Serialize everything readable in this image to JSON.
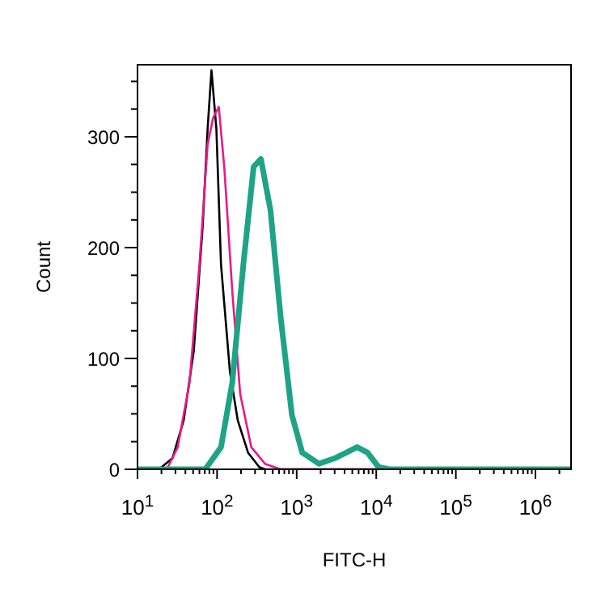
{
  "chart_data": {
    "type": "line",
    "xlabel": "FITC-H",
    "ylabel": "Count",
    "log": "x",
    "grid": false,
    "marker": "none",
    "line_style": "solid",
    "xlim": [
      10,
      2800000
    ],
    "ylim": [
      0,
      365
    ],
    "xticks": [
      {
        "value": 10,
        "label": "10$^{1}$"
      },
      {
        "value": 20,
        "label": null
      },
      {
        "value": 30,
        "label": null
      },
      {
        "value": 40,
        "label": null
      },
      {
        "value": 50,
        "label": null
      },
      {
        "value": 60,
        "label": null
      },
      {
        "value": 70,
        "label": null
      },
      {
        "value": 80,
        "label": null
      },
      {
        "value": 90,
        "label": null
      },
      {
        "value": 100,
        "label": "10$^{2}$"
      },
      {
        "value": 200,
        "label": null
      },
      {
        "value": 300,
        "label": null
      },
      {
        "value": 400,
        "label": null
      },
      {
        "value": 500,
        "label": null
      },
      {
        "value": 600,
        "label": null
      },
      {
        "value": 700,
        "label": null
      },
      {
        "value": 800,
        "label": null
      },
      {
        "value": 900,
        "label": null
      },
      {
        "value": 1000,
        "label": "10$^{3}$"
      },
      {
        "value": 2000,
        "label": null
      },
      {
        "value": 3000,
        "label": null
      },
      {
        "value": 4000,
        "label": null
      },
      {
        "value": 5000,
        "label": null
      },
      {
        "value": 6000,
        "label": null
      },
      {
        "value": 7000,
        "label": null
      },
      {
        "value": 8000,
        "label": null
      },
      {
        "value": 9000,
        "label": null
      },
      {
        "value": 10000,
        "label": "10$^{4}$"
      },
      {
        "value": 20000,
        "label": null
      },
      {
        "value": 30000,
        "label": null
      },
      {
        "value": 40000,
        "label": null
      },
      {
        "value": 50000,
        "label": null
      },
      {
        "value": 60000,
        "label": null
      },
      {
        "value": 70000,
        "label": null
      },
      {
        "value": 80000,
        "label": null
      },
      {
        "value": 90000,
        "label": null
      },
      {
        "value": 100000,
        "label": "10$^{5}$"
      },
      {
        "value": 200000,
        "label": null
      },
      {
        "value": 300000,
        "label": null
      },
      {
        "value": 400000,
        "label": null
      },
      {
        "value": 500000,
        "label": null
      },
      {
        "value": 600000,
        "label": null
      },
      {
        "value": 700000,
        "label": null
      },
      {
        "value": 800000,
        "label": null
      },
      {
        "value": 900000,
        "label": null
      },
      {
        "value": 1000000,
        "label": "10$^{6}$"
      },
      {
        "value": 2000000,
        "label": null
      }
    ],
    "yticks": [
      0,
      {
        "value": 25,
        "label": null
      },
      {
        "value": 50,
        "label": null
      },
      {
        "value": 75,
        "label": null
      },
      100,
      {
        "value": 125,
        "label": null
      },
      {
        "value": 150,
        "label": null
      },
      {
        "value": 175,
        "label": null
      },
      200,
      {
        "value": 225,
        "label": null
      },
      {
        "value": 250,
        "label": null
      },
      {
        "value": 275,
        "label": null
      },
      300,
      {
        "value": 325,
        "label": null
      },
      {
        "value": 350,
        "label": null
      }
    ],
    "series": [
      {
        "color": "#000000",
        "x": [
          10,
          18.6,
          27.5,
          38,
          51,
          66,
          76,
          85,
          98,
          112,
          145,
          182,
          245,
          339,
          400,
          2800000
        ],
        "values": [
          0,
          0,
          10,
          44,
          107,
          220,
          307,
          360,
          307,
          185,
          88,
          44,
          15,
          2,
          0,
          0
        ]
      },
      {
        "color": "#e8198b",
        "x": [
          10,
          23.4,
          32,
          45,
          60,
          76,
          89,
          105,
          123,
          155,
          195,
          269,
          400,
          630,
          2800000
        ],
        "values": [
          0,
          0,
          20,
          78,
          185,
          293,
          317,
          327,
          273,
          161,
          68,
          20,
          5,
          0,
          0
        ]
      },
      {
        "color": "#1fa386",
        "x": [
          10,
          71,
          112,
          155,
          214,
          288,
          355,
          468,
          630,
          871,
          1175,
          1905,
          3020,
          5750,
          7760,
          10700,
          14500,
          2800000
        ],
        "values": [
          0,
          0,
          20,
          78,
          185,
          273,
          280,
          234,
          137,
          49,
          15,
          5,
          10,
          20,
          15,
          2,
          0,
          0
        ]
      }
    ]
  }
}
